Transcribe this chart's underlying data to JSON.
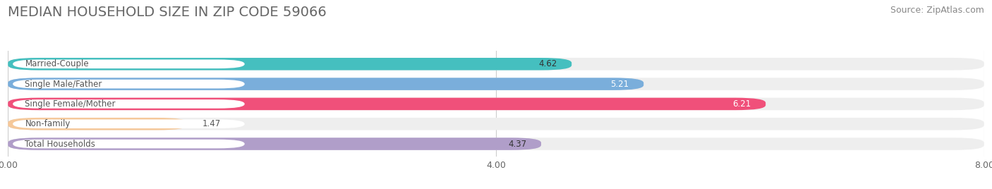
{
  "title": "MEDIAN HOUSEHOLD SIZE IN ZIP CODE 59066",
  "source": "Source: ZipAtlas.com",
  "categories": [
    "Married-Couple",
    "Single Male/Father",
    "Single Female/Mother",
    "Non-family",
    "Total Households"
  ],
  "values": [
    4.62,
    5.21,
    6.21,
    1.47,
    4.37
  ],
  "bar_colors": [
    "#45bfbf",
    "#7aaedb",
    "#f0507a",
    "#f5c89a",
    "#b09ec9"
  ],
  "value_colors": [
    "#333333",
    "#ffffff",
    "#ffffff",
    "#555555",
    "#333333"
  ],
  "xlim": [
    0,
    8.0
  ],
  "xticks": [
    0.0,
    4.0,
    8.0
  ],
  "xtick_labels": [
    "0.00",
    "4.00",
    "8.00"
  ],
  "title_fontsize": 14,
  "source_fontsize": 9,
  "bar_height": 0.62,
  "background_color": "#ffffff",
  "bar_background_color": "#eeeeee",
  "label_bg_color": "#ffffff",
  "label_text_color": "#555555",
  "grid_color": "#cccccc"
}
